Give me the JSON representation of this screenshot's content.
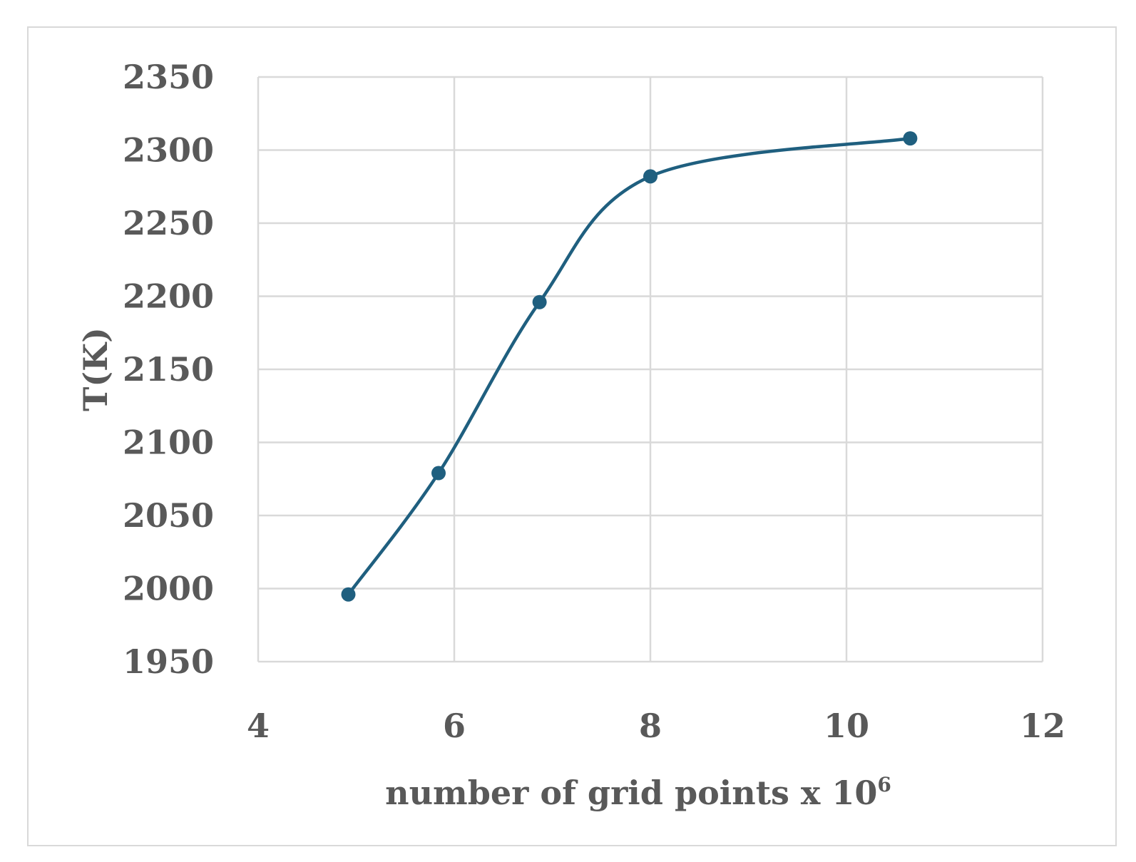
{
  "chart_data": {
    "type": "line",
    "title": "",
    "xlabel": "number of grid points x 10",
    "xlabel_superscript": "6",
    "ylabel": "T(K)",
    "xlim": [
      4,
      12
    ],
    "ylim": [
      1950,
      2350
    ],
    "x_ticks": [
      4,
      6,
      8,
      10,
      12
    ],
    "y_ticks": [
      1950,
      2000,
      2050,
      2100,
      2150,
      2200,
      2250,
      2300,
      2350
    ],
    "x_tick_labels": [
      "4",
      "6",
      "8",
      "10",
      "12"
    ],
    "y_tick_labels": [
      "1950",
      "2000",
      "2050",
      "2100",
      "2150",
      "2200",
      "2250",
      "2300",
      "2350"
    ],
    "grid": true,
    "smooth": true,
    "series": [
      {
        "color": "#1f5f7f",
        "x": [
          4.92,
          5.84,
          6.87,
          8.0,
          10.65
        ],
        "y": [
          1996,
          2079,
          2196,
          2282,
          2308
        ]
      }
    ]
  }
}
